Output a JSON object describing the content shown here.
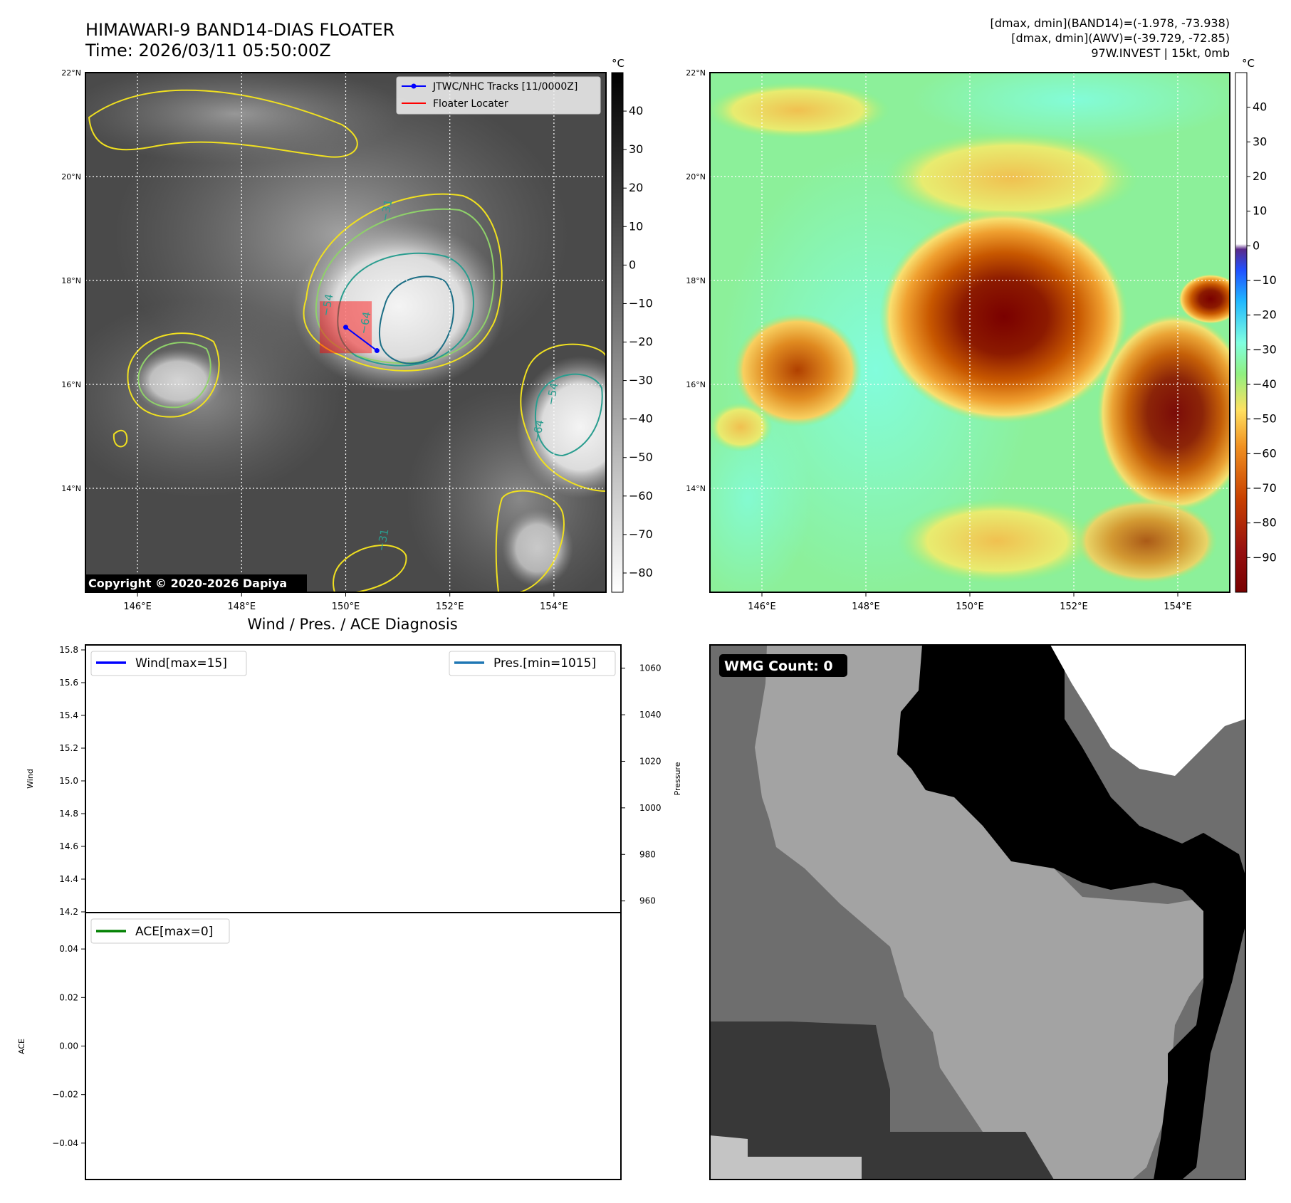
{
  "header": {
    "title_line1": "HIMAWARI-9 BAND14-DIAS FLOATER",
    "title_line2": "Time: 2026/03/11 05:50:00Z",
    "info_line1": "[dmax, dmin](BAND14)=(-1.978, -73.938)",
    "info_line2": "[dmax, dmin](AWV)=(-39.729, -72.85)",
    "info_line3": "97W.INVEST | 15kt, 0mb"
  },
  "colors": {
    "wind": "#0000ff",
    "pressure": "#1f77b4",
    "ace": "#008000",
    "track": "#0000ff",
    "floater": "#ff0000",
    "contour_yellow": "#f0e020",
    "contour_light_green": "#8fd16a",
    "contour_teal": "#2a9d8f",
    "contour_dark_teal": "#1d6f86"
  },
  "icons": {
    "legend_track": "line-dot-icon",
    "legend_floater": "line-icon"
  },
  "chart_data": [
    {
      "id": "band14",
      "type": "heatmap",
      "title": "",
      "colormap": "greys",
      "xticks": [
        "146°E",
        "148°E",
        "150°E",
        "152°E",
        "154°E"
      ],
      "yticks": [
        "22°N",
        "20°N",
        "18°N",
        "16°N",
        "14°N"
      ],
      "xlim": [
        145,
        155
      ],
      "ylim": [
        12,
        22
      ],
      "grid": true,
      "colorbar": {
        "unit": "°C",
        "ticks": [
          "40",
          "30",
          "20",
          "10",
          "0",
          "−10",
          "−20",
          "−30",
          "−40",
          "−50",
          "−60",
          "−70",
          "−80"
        ]
      },
      "contour_labels": [
        "−54",
        "−64",
        "−31",
        "−54",
        "−64",
        "−31"
      ],
      "legend": {
        "position": "top-right",
        "entries": [
          "JTWC/NHC Tracks [11/0000Z]",
          "Floater Locater"
        ]
      },
      "track_points": [
        {
          "lon": 150.0,
          "lat": 17.1
        },
        {
          "lon": 150.6,
          "lat": 16.65
        }
      ],
      "floater_box": {
        "lon": [
          149.5,
          150.5
        ],
        "lat": [
          16.6,
          17.6
        ]
      },
      "copyright": "Copyright © 2020-2026 Dapiya"
    },
    {
      "id": "awv",
      "type": "heatmap",
      "title": "",
      "colormap": "awv",
      "xticks": [
        "146°E",
        "148°E",
        "150°E",
        "152°E",
        "154°E"
      ],
      "yticks": [
        "22°N",
        "20°N",
        "18°N",
        "16°N",
        "14°N"
      ],
      "xlim": [
        145,
        155
      ],
      "ylim": [
        12,
        22
      ],
      "grid": true,
      "colorbar": {
        "unit": "°C",
        "ticks": [
          "40",
          "30",
          "20",
          "10",
          "0",
          "−10",
          "−20",
          "−30",
          "−40",
          "−50",
          "−60",
          "−70",
          "−80",
          "−90"
        ]
      }
    },
    {
      "id": "wind-pres",
      "type": "line",
      "title": "Wind / Pres. / ACE Diagnosis",
      "ylabel": "Wind",
      "y2label": "Pressure",
      "ylim": [
        14.2,
        15.8
      ],
      "y2lim": [
        955,
        1070
      ],
      "yticks": [
        "15.8",
        "15.6",
        "15.4",
        "15.2",
        "15.0",
        "14.8",
        "14.6",
        "14.4",
        "14.2"
      ],
      "y2ticks": [
        "1060",
        "1040",
        "1020",
        "1000",
        "980",
        "960"
      ],
      "series": [
        {
          "name": "Wind[max=15]",
          "values": []
        },
        {
          "name": "Pres.[min=1015]",
          "values": []
        }
      ]
    },
    {
      "id": "ace",
      "type": "line",
      "title": "",
      "ylabel": "ACE",
      "ylim": [
        -0.055,
        0.055
      ],
      "yticks": [
        "0.04",
        "0.02",
        "0.00",
        "−0.02",
        "−0.04"
      ],
      "series": [
        {
          "name": "ACE[max=0]",
          "values": []
        }
      ]
    },
    {
      "id": "wmg",
      "type": "heatmap",
      "title": "",
      "badge": "WMG Count: 0"
    }
  ]
}
